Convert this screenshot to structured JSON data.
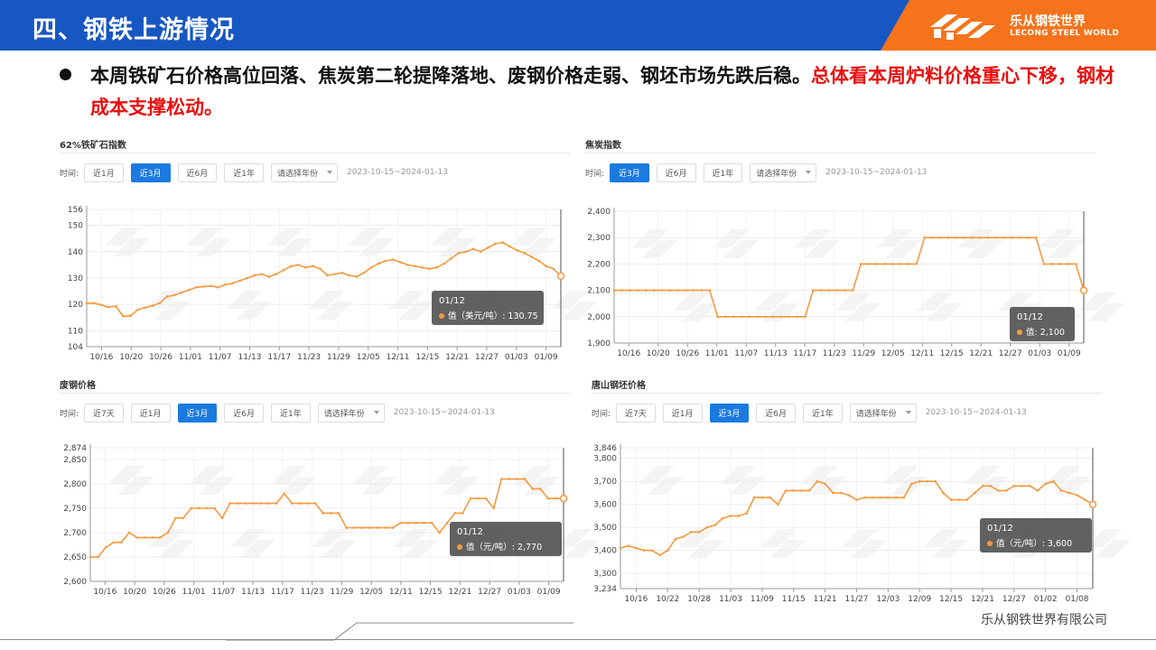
{
  "header": {
    "title": "四、钢铁上游情况",
    "logo_cn": "乐从钢铁世界",
    "logo_en": "LECONG STEEL WORLD",
    "colors": {
      "primary": "#1757c2",
      "accent": "#f5731b"
    }
  },
  "summary": {
    "text_black": "本周铁矿石价格高位回落、焦炭第二轮提降落地、废钢价格走弱、钢坯市场先跌后稳。",
    "text_red": "总体看本周炉料价格重心下移，钢材成本支撑松动。"
  },
  "footer": {
    "company": "乐从钢铁世界有限公司"
  },
  "charts": [
    {
      "title": "62%铁矿石指数",
      "time_label": "时间:",
      "buttons": [
        "近1月",
        "近3月",
        "近6月",
        "近1年"
      ],
      "active": "近3月",
      "select_placeholder": "请选择年份",
      "range": "2023-10-15~2024-01-13",
      "tooltip_date": "01/12",
      "tooltip_label": "值（美元/吨）:",
      "tooltip_value": "130.75"
    },
    {
      "title": "焦炭指数",
      "time_label": "时间:",
      "buttons": [
        "近3月",
        "近6月",
        "近1年"
      ],
      "active": "近3月",
      "select_placeholder": "请选择年份",
      "range": "2023-10-15~2024-01-13",
      "tooltip_date": "01/12",
      "tooltip_label": "值:",
      "tooltip_value": "2,100"
    },
    {
      "title": "废钢价格",
      "time_label": "时间:",
      "buttons": [
        "近7天",
        "近1月",
        "近3月",
        "近6月",
        "近1年"
      ],
      "active": "近3月",
      "select_placeholder": "请选择年份",
      "range": "2023-10-15~2024-01-13",
      "tooltip_date": "01/12",
      "tooltip_label": "值（元/吨）:",
      "tooltip_value": "2,770"
    },
    {
      "title": "唐山钢坯价格",
      "time_label": "时间:",
      "buttons": [
        "近7天",
        "近1月",
        "近3月",
        "近6月",
        "近1年"
      ],
      "active": "近3月",
      "select_placeholder": "请选择年份",
      "range": "2023-10-15~2024-01-13",
      "tooltip_date": "01/12",
      "tooltip_label": "值（元/吨）:",
      "tooltip_value": "3,600"
    }
  ],
  "chart_data": [
    {
      "type": "line",
      "line_color": "#f59a40",
      "x_ticks": [
        "10/16",
        "10/20",
        "10/26",
        "11/01",
        "11/07",
        "11/13",
        "11/17",
        "11/23",
        "11/29",
        "12/05",
        "12/11",
        "12/15",
        "12/21",
        "12/27",
        "01/03",
        "01/09"
      ],
      "y_ticks": [
        "104",
        "110",
        "120",
        "130",
        "140",
        "150",
        "156"
      ],
      "y_tick_values": [
        104,
        110,
        120,
        130,
        140,
        150,
        156
      ],
      "ylim": [
        104,
        156
      ],
      "values": [
        120.5,
        120.5,
        119.8,
        119.0,
        119.3,
        115.5,
        115.7,
        118.0,
        118.8,
        119.5,
        120.5,
        123.0,
        123.5,
        124.5,
        125.5,
        126.5,
        126.8,
        127.0,
        126.5,
        127.5,
        128.0,
        129.0,
        130.0,
        131.0,
        131.5,
        130.5,
        131.5,
        133.0,
        134.5,
        135.0,
        134.0,
        134.5,
        133.5,
        131.0,
        131.5,
        132.0,
        131.0,
        130.5,
        132.0,
        134.0,
        135.5,
        136.5,
        137.0,
        136.0,
        135.0,
        134.5,
        134.0,
        133.5,
        134.0,
        135.5,
        137.5,
        139.5,
        140.0,
        141.0,
        140.0,
        141.5,
        143.0,
        143.5,
        142.0,
        140.5,
        139.5,
        138.0,
        136.5,
        134.5,
        133.5,
        130.75
      ]
    },
    {
      "type": "line",
      "line_color": "#f59a40",
      "x_ticks": [
        "10/16",
        "10/20",
        "10/26",
        "11/01",
        "11/07",
        "11/13",
        "11/17",
        "11/23",
        "11/29",
        "12/05",
        "12/11",
        "12/15",
        "12/21",
        "12/27",
        "01/03",
        "01/09"
      ],
      "y_ticks": [
        "1,900",
        "2,000",
        "2,100",
        "2,200",
        "2,300",
        "2,400"
      ],
      "y_tick_values": [
        1900,
        2000,
        2100,
        2200,
        2300,
        2400
      ],
      "ylim": [
        1900,
        2400
      ],
      "values": [
        2100,
        2100,
        2100,
        2100,
        2100,
        2100,
        2100,
        2100,
        2100,
        2100,
        2100,
        2100,
        2100,
        2000,
        2000,
        2000,
        2000,
        2000,
        2000,
        2000,
        2000,
        2000,
        2000,
        2000,
        2000,
        2100,
        2100,
        2100,
        2100,
        2100,
        2100,
        2200,
        2200,
        2200,
        2200,
        2200,
        2200,
        2200,
        2200,
        2300,
        2300,
        2300,
        2300,
        2300,
        2300,
        2300,
        2300,
        2300,
        2300,
        2300,
        2300,
        2300,
        2300,
        2300,
        2200,
        2200,
        2200,
        2200,
        2200,
        2100
      ]
    },
    {
      "type": "line",
      "line_color": "#f59a40",
      "x_ticks": [
        "10/16",
        "10/20",
        "10/26",
        "11/01",
        "11/07",
        "11/13",
        "11/17",
        "11/23",
        "11/29",
        "12/05",
        "12/11",
        "12/15",
        "12/21",
        "12/27",
        "01/03",
        "01/09"
      ],
      "y_ticks": [
        "2,600",
        "2,650",
        "2,700",
        "2,750",
        "2,800",
        "2,850",
        "2,874"
      ],
      "y_tick_values": [
        2600,
        2650,
        2700,
        2750,
        2800,
        2850,
        2874
      ],
      "ylim": [
        2600,
        2874
      ],
      "values": [
        2650,
        2650,
        2670,
        2680,
        2680,
        2700,
        2690,
        2690,
        2690,
        2690,
        2700,
        2730,
        2730,
        2750,
        2750,
        2750,
        2750,
        2730,
        2760,
        2760,
        2760,
        2760,
        2760,
        2760,
        2760,
        2780,
        2760,
        2760,
        2760,
        2760,
        2740,
        2740,
        2740,
        2710,
        2710,
        2710,
        2710,
        2710,
        2710,
        2710,
        2720,
        2720,
        2720,
        2720,
        2720,
        2700,
        2720,
        2740,
        2740,
        2770,
        2770,
        2770,
        2750,
        2810,
        2810,
        2810,
        2810,
        2790,
        2790,
        2770,
        2770,
        2770
      ]
    },
    {
      "type": "line",
      "line_color": "#f59a40",
      "x_ticks": [
        "10/16",
        "10/22",
        "10/28",
        "11/03",
        "11/09",
        "11/15",
        "11/21",
        "11/27",
        "12/03",
        "12/09",
        "12/15",
        "12/21",
        "12/27",
        "01/02",
        "01/08"
      ],
      "y_ticks": [
        "3,234",
        "3,300",
        "3,400",
        "3,500",
        "3,600",
        "3,700",
        "3,800",
        "3,846"
      ],
      "y_tick_values": [
        3234,
        3300,
        3400,
        3500,
        3600,
        3700,
        3800,
        3846
      ],
      "ylim": [
        3234,
        3846
      ],
      "values": [
        3410,
        3420,
        3410,
        3400,
        3400,
        3380,
        3400,
        3450,
        3460,
        3480,
        3480,
        3500,
        3510,
        3540,
        3550,
        3550,
        3560,
        3630,
        3630,
        3630,
        3600,
        3660,
        3660,
        3660,
        3660,
        3700,
        3690,
        3650,
        3650,
        3640,
        3620,
        3630,
        3630,
        3630,
        3630,
        3630,
        3630,
        3690,
        3700,
        3700,
        3700,
        3650,
        3620,
        3620,
        3620,
        3650,
        3680,
        3680,
        3660,
        3660,
        3680,
        3680,
        3680,
        3660,
        3690,
        3700,
        3660,
        3650,
        3640,
        3620,
        3600
      ]
    }
  ]
}
